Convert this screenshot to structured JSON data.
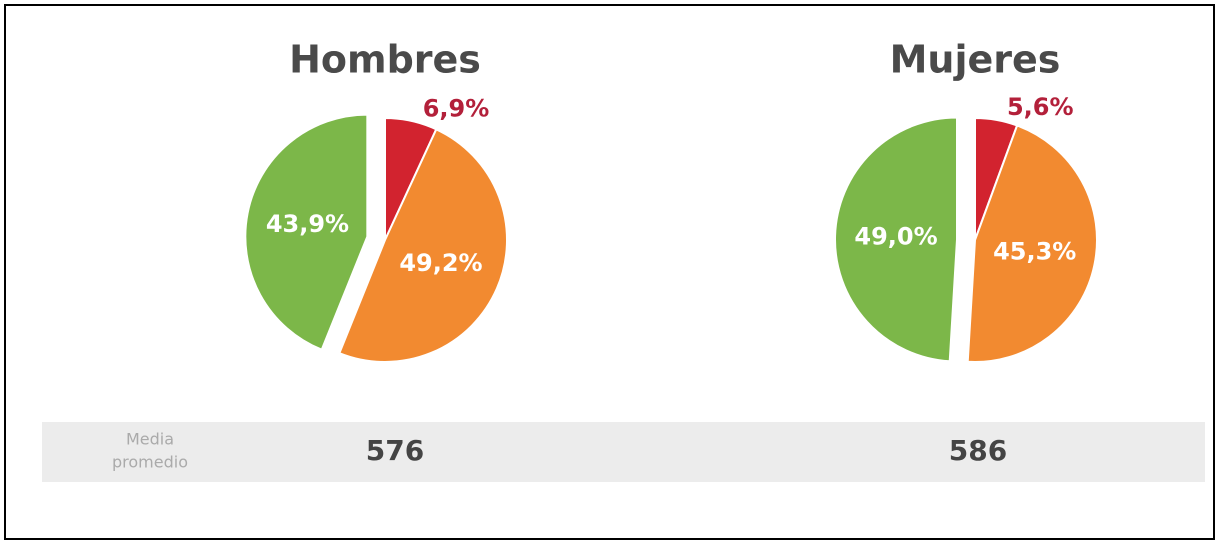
{
  "chart_data": [
    {
      "type": "pie",
      "title": "Hombres",
      "values": [
        6.9,
        49.2,
        43.9
      ],
      "value_labels": [
        "6,9%",
        "49,2%",
        "43,9%"
      ],
      "colors": [
        "#d2232f",
        "#f28a30",
        "#7cb749"
      ]
    },
    {
      "type": "pie",
      "title": "Mujeres",
      "values": [
        5.6,
        45.3,
        49.0
      ],
      "value_labels": [
        "5,6%",
        "45,3%",
        "49,0%"
      ],
      "colors": [
        "#d2232f",
        "#f28a30",
        "#7cb749"
      ]
    }
  ],
  "summary": {
    "label_lines": [
      "Media",
      "promedio"
    ],
    "values": [
      "576",
      "586"
    ]
  }
}
